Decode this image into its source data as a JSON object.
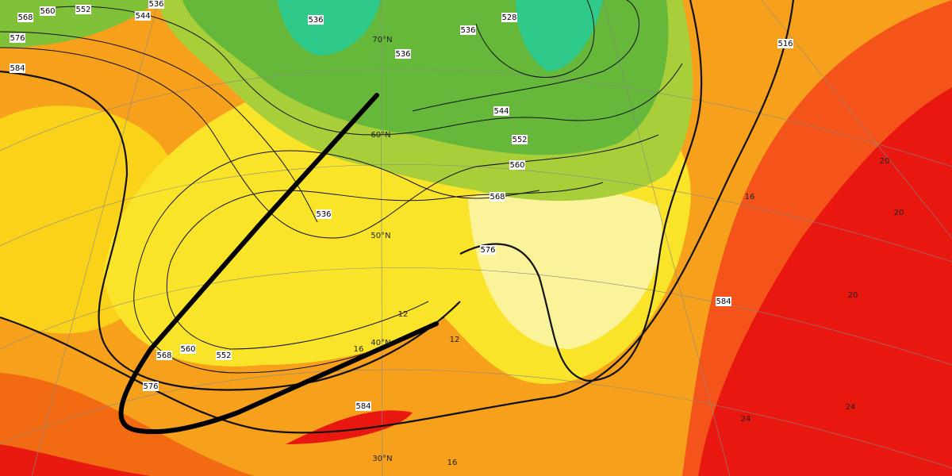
{
  "contour_labels": [
    "560",
    "552",
    "544",
    "536",
    "568",
    "576",
    "584",
    "536",
    "536",
    "536",
    "528",
    "516",
    "544",
    "552",
    "560",
    "568",
    "576",
    "536",
    "568",
    "560",
    "552",
    "576",
    "584",
    "584"
  ],
  "temperature_labels": [
    "16",
    "20",
    "20",
    "20",
    "24",
    "16",
    "12",
    "16",
    "12",
    "24"
  ],
  "latitude_labels": [
    "70°N",
    "60°N",
    "50°N",
    "40°N",
    "30°N"
  ]
}
